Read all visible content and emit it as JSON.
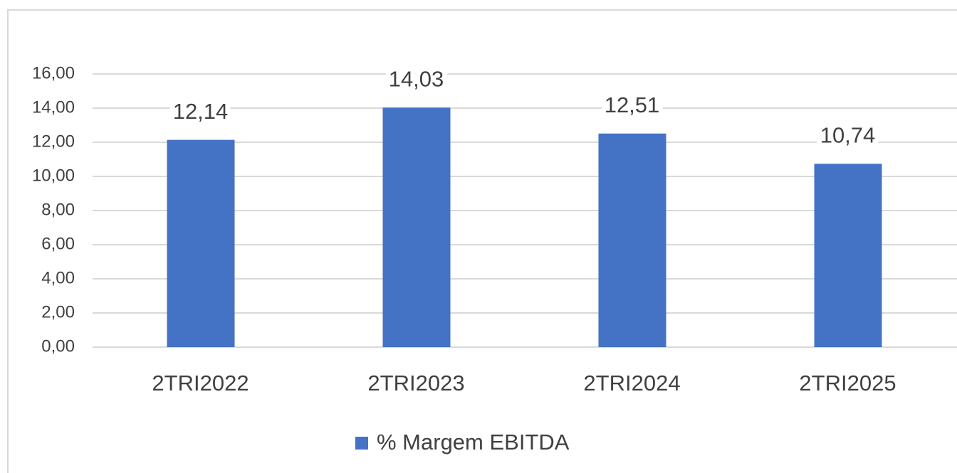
{
  "chart_data": {
    "type": "bar",
    "categories": [
      "2TRI2022",
      "2TRI2023",
      "2TRI2024",
      "2TRI2025"
    ],
    "series": [
      {
        "name": "% Margem EBITDA",
        "color": "#4472c4",
        "values": [
          12.14,
          14.03,
          12.51,
          10.74
        ],
        "value_labels": [
          "12,14",
          "14,03",
          "12,51",
          "10,74"
        ]
      }
    ],
    "ylim": [
      0,
      16
    ],
    "yticks": [
      {
        "value": 0,
        "label": "0,00"
      },
      {
        "value": 2,
        "label": "2,00"
      },
      {
        "value": 4,
        "label": "4,00"
      },
      {
        "value": 6,
        "label": "6,00"
      },
      {
        "value": 8,
        "label": "8,00"
      },
      {
        "value": 10,
        "label": "10,00"
      },
      {
        "value": 12,
        "label": "12,00"
      },
      {
        "value": 14,
        "label": "14,00"
      },
      {
        "value": 16,
        "label": "16,00"
      }
    ],
    "grid": true,
    "legend": "bottom"
  }
}
